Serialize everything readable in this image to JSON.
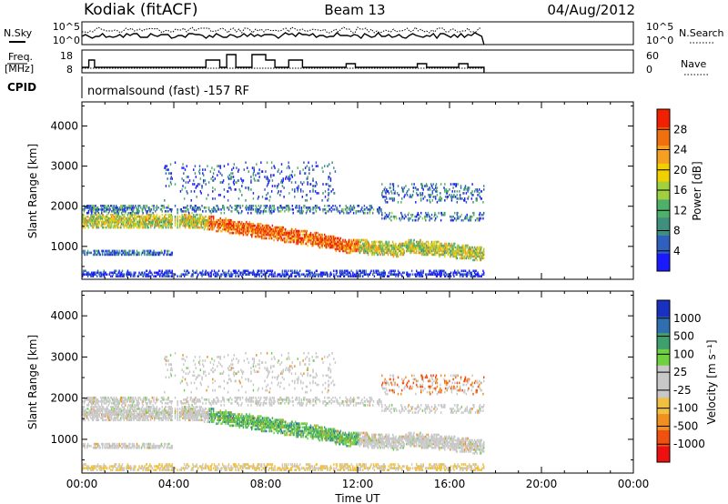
{
  "header": {
    "site": "Kodiak (fitACF)",
    "beam": "Beam 13",
    "date": "04/Aug/2012"
  },
  "status_panels": {
    "nsky": {
      "label": "N.Sky",
      "ticks": [
        "10^5",
        "10^0"
      ]
    },
    "nsearch": {
      "label": "N.Search",
      "ticks": [
        "10^5",
        "10^0"
      ]
    },
    "freq": {
      "label_line1": "Freq.",
      "label_line2": "[MHz]",
      "ticks": [
        "18",
        "8"
      ]
    },
    "nave": {
      "label": "Nave",
      "ticks": [
        "60",
        "0"
      ]
    },
    "cpid": {
      "label": "CPID",
      "text": "normalsound (fast) -157 RF"
    }
  },
  "colors": {
    "power": [
      "#1a1aff",
      "#2f5fbf",
      "#3f8f7f",
      "#4fb06a",
      "#a0d040",
      "#f0d000",
      "#f5a020",
      "#f07010",
      "#f02000"
    ],
    "velocity": [
      "#ee1010",
      "#f05010",
      "#f09020",
      "#f0c040",
      "#c8c8c8",
      "#c8c8c8",
      "#70d040",
      "#3f9f6f",
      "#2f6fb0",
      "#1a30c0"
    ]
  },
  "chart_data": [
    {
      "type": "heatmap",
      "name": "power",
      "ylabel": "Slant Range [km]",
      "xlim": [
        "00:00",
        "24:00"
      ],
      "ylim": [
        180,
        4600
      ],
      "yticks": [
        1000,
        2000,
        3000,
        4000
      ],
      "x_tick_labels": [],
      "colorbar": {
        "label": "Power [dB]",
        "ticks": [
          4,
          8,
          12,
          16,
          20,
          24,
          28
        ],
        "range": [
          0,
          32
        ]
      },
      "data_end_hour": 17.5
    },
    {
      "type": "heatmap",
      "name": "velocity",
      "ylabel": "Slant Range [km]",
      "xlabel": "Time UT",
      "xlim": [
        "00:00",
        "24:00"
      ],
      "ylim": [
        180,
        4600
      ],
      "yticks": [
        1000,
        2000,
        3000,
        4000
      ],
      "x_tick_labels": [
        "00:00",
        "04:00",
        "08:00",
        "12:00",
        "16:00",
        "20:00",
        "00:00"
      ],
      "colorbar": {
        "label": "Velocity [m s⁻¹]",
        "ticks": [
          -1000,
          -500,
          -100,
          -25,
          25,
          100,
          500,
          1000
        ]
      },
      "data_end_hour": 17.5
    }
  ]
}
